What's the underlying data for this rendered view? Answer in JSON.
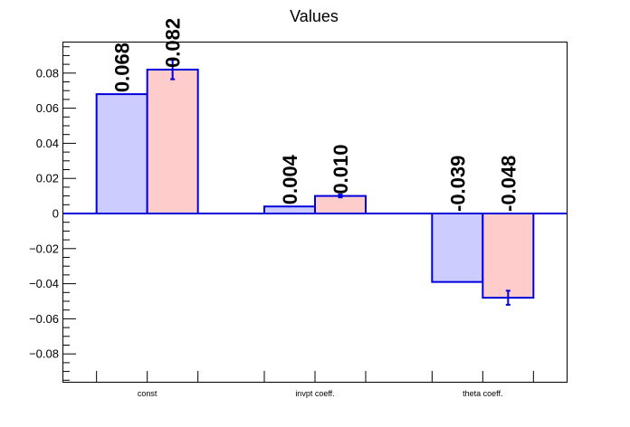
{
  "chart_data": {
    "type": "bar",
    "title": "Values",
    "xlabel": "",
    "ylabel": "",
    "categories": [
      "const",
      "invpt coeff.",
      "theta coeff."
    ],
    "ylim": [
      -0.1,
      0.098
    ],
    "yticks": [
      -0.08,
      -0.06,
      -0.04,
      -0.02,
      0,
      0.02,
      0.04,
      0.06,
      0.08
    ],
    "ytick_labels": [
      "−0.08",
      "−0.06",
      "−0.04",
      "−0.02",
      "0",
      "0.02",
      "0.04",
      "0.06",
      "0.08"
    ],
    "series": [
      {
        "values": [
          0.068,
          0.004,
          -0.039
        ],
        "labels": [
          "0.068",
          "0.004",
          "-0.039"
        ],
        "errors": [
          0,
          0,
          0
        ],
        "fill": "#ccccff",
        "edge": "#0000dd"
      },
      {
        "values": [
          0.082,
          0.01,
          -0.048
        ],
        "labels": [
          "0.082",
          "0.010",
          "-0.048"
        ],
        "errors": [
          0.0055,
          0.0008,
          0.004
        ],
        "fill": "#ffcccc",
        "edge": "#0000dd"
      }
    ],
    "grid": false,
    "legend": "none",
    "zero_line_color": "#0000dd"
  }
}
